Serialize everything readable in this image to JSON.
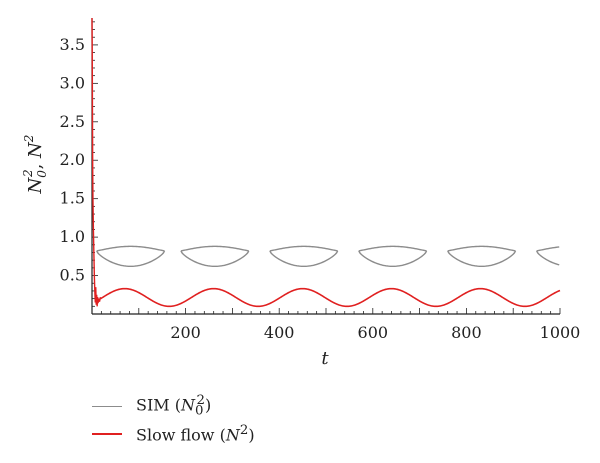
{
  "chart_data": {
    "type": "line",
    "xlabel": "t",
    "ylabel": "N_0^2, N^2",
    "xlim": [
      0,
      1000
    ],
    "ylim": [
      0,
      3.85
    ],
    "x_ticks": [
      200,
      400,
      600,
      800,
      1000
    ],
    "y_ticks": [
      0.5,
      1.0,
      1.5,
      2.0,
      2.5,
      3.0,
      3.5
    ],
    "x_tick_labels": [
      "200",
      "400",
      "600",
      "800",
      "1000"
    ],
    "y_tick_labels": [
      "0.5",
      "1.0",
      "1.5",
      "2.0",
      "2.5",
      "3.0",
      "3.5"
    ],
    "grid": false,
    "legend_position": "bottom-left",
    "series": [
      {
        "name": "SIM (N_0^2)",
        "color": "#8c8c8c",
        "shape": "closed-loops",
        "period": 190,
        "loops": [
          {
            "x_start": 10,
            "x_end": 150,
            "upper_y": 0.88,
            "lower_y": 0.62,
            "end_y": 0.82
          },
          {
            "x_start": 190,
            "x_end": 340,
            "upper_y": 0.88,
            "lower_y": 0.62,
            "end_y": 0.82
          },
          {
            "x_start": 380,
            "x_end": 530,
            "upper_y": 0.88,
            "lower_y": 0.62,
            "end_y": 0.82
          },
          {
            "x_start": 570,
            "x_end": 720,
            "upper_y": 0.88,
            "lower_y": 0.62,
            "end_y": 0.82
          },
          {
            "x_start": 760,
            "x_end": 910,
            "upper_y": 0.88,
            "lower_y": 0.62,
            "end_y": 0.82
          },
          {
            "x_start": 950,
            "x_end": 1000,
            "upper_y": 0.88,
            "lower_y": 0.62,
            "end_y": 0.82
          }
        ]
      },
      {
        "name": "Slow flow (N^2)",
        "color": "#e02020",
        "initial_peak": 3.9,
        "x": [
          0,
          2,
          4,
          6,
          8,
          10,
          14,
          18,
          25,
          40,
          70,
          120,
          165,
          215,
          265,
          310,
          360,
          410,
          455,
          500,
          550,
          600,
          645,
          695,
          740,
          790,
          835,
          885,
          930,
          975,
          1000
        ],
        "y": [
          3.9,
          1.6,
          0.9,
          0.6,
          0.2,
          0.12,
          0.22,
          0.2,
          0.24,
          0.3,
          0.33,
          0.24,
          0.1,
          0.24,
          0.33,
          0.24,
          0.1,
          0.24,
          0.33,
          0.24,
          0.1,
          0.24,
          0.33,
          0.24,
          0.1,
          0.24,
          0.33,
          0.24,
          0.1,
          0.22,
          0.28
        ]
      }
    ]
  },
  "legend": {
    "items": [
      {
        "prefix": "SIM (",
        "math": "N",
        "sub": "0",
        "sup": "2",
        "suffix": ")"
      },
      {
        "prefix": "Slow flow (",
        "math": "N",
        "sub": "",
        "sup": "2",
        "suffix": ")"
      }
    ]
  }
}
